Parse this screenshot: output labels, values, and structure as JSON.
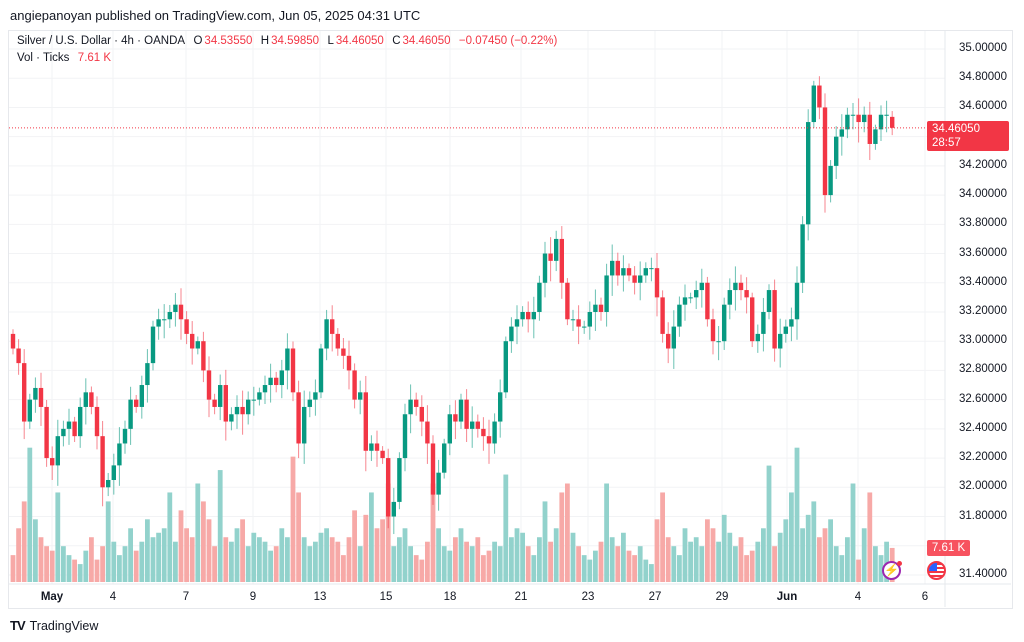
{
  "header": {
    "published": "angiepanoyan published on TradingView.com, Jun 05, 2025 04:31 UTC"
  },
  "legend": {
    "symbol": "Silver / U.S. Dollar · 4h · OANDA",
    "o_label": "O",
    "o": "34.53550",
    "h_label": "H",
    "h": "34.59850",
    "l_label": "L",
    "l": "34.46050",
    "c_label": "C",
    "c": "34.46050",
    "change": "−0.07450 (−0.22%)",
    "vol_label": "Vol · Ticks",
    "vol": "7.61 K"
  },
  "price_tag": {
    "price": "34.46050",
    "countdown": "28:57"
  },
  "vol_tag": "7.61 K",
  "footer": {
    "brand": "TradingView",
    "logo": "TV"
  },
  "colors": {
    "up": "#089981",
    "down": "#f23645",
    "up_vol": "#92d2cc",
    "down_vol": "#f7a9a7"
  },
  "chart_data": {
    "type": "candlestick",
    "title": "Silver / U.S. Dollar · 4h · OANDA",
    "y_ticks": [
      "35.00000",
      "34.80000",
      "34.60000",
      "34.20000",
      "34.00000",
      "33.80000",
      "33.60000",
      "33.40000",
      "33.20000",
      "33.00000",
      "32.80000",
      "32.60000",
      "32.40000",
      "32.20000",
      "32.00000",
      "31.80000",
      "31.40000"
    ],
    "x_ticks": [
      "May",
      "4",
      "7",
      "9",
      "13",
      "15",
      "18",
      "21",
      "23",
      "27",
      "29",
      "Jun",
      "4",
      "6"
    ],
    "ylim": [
      31.4,
      35.0
    ],
    "first_open": 33.05,
    "last_open": 34.5355,
    "last_close": 34.4605,
    "closes": [
      32.95,
      32.85,
      32.45,
      32.6,
      32.68,
      32.55,
      32.2,
      32.15,
      32.35,
      32.4,
      32.45,
      32.35,
      32.55,
      32.65,
      32.55,
      32.35,
      32.0,
      32.05,
      32.15,
      32.3,
      32.4,
      32.6,
      32.55,
      32.7,
      32.85,
      33.1,
      33.15,
      33.15,
      33.2,
      33.25,
      33.15,
      33.05,
      32.95,
      33.0,
      32.8,
      32.6,
      32.55,
      32.7,
      32.45,
      32.5,
      32.55,
      32.5,
      32.6,
      32.6,
      32.65,
      32.7,
      32.75,
      32.7,
      32.8,
      32.95,
      32.65,
      32.3,
      32.55,
      32.6,
      32.65,
      32.95,
      33.15,
      33.05,
      32.95,
      32.9,
      32.8,
      32.6,
      32.65,
      32.25,
      32.3,
      32.25,
      32.2,
      31.8,
      31.9,
      32.2,
      32.5,
      32.6,
      32.55,
      32.45,
      32.3,
      31.95,
      32.1,
      32.3,
      32.5,
      32.45,
      32.6,
      32.4,
      32.45,
      32.4,
      32.35,
      32.3,
      32.45,
      32.65,
      33.0,
      33.1,
      33.15,
      33.2,
      33.15,
      33.2,
      33.4,
      33.6,
      33.55,
      33.7,
      33.4,
      33.15,
      33.15,
      33.1,
      33.1,
      33.2,
      33.25,
      33.2,
      33.45,
      33.55,
      33.45,
      33.5,
      33.45,
      33.4,
      33.45,
      33.5,
      33.5,
      33.3,
      33.05,
      32.95,
      33.1,
      33.25,
      33.3,
      33.3,
      33.35,
      33.4,
      33.15,
      33.0,
      33.0,
      33.25,
      33.35,
      33.4,
      33.35,
      33.3,
      33.0,
      33.05,
      33.2,
      33.35,
      32.95,
      33.05,
      33.1,
      33.15,
      33.4,
      33.8,
      34.5,
      34.75,
      34.6,
      34.0,
      34.2,
      34.4,
      34.45,
      34.55,
      34.55,
      34.5,
      34.55,
      34.35,
      34.45,
      34.55,
      34.55,
      34.4605
    ],
    "volume_k": [
      6,
      12,
      18,
      30,
      14,
      10,
      8,
      7,
      20,
      8,
      6,
      5,
      4,
      7,
      10,
      5,
      8,
      18,
      9,
      6,
      8,
      12,
      7,
      9,
      14,
      10,
      11,
      12,
      20,
      9,
      16,
      12,
      10,
      22,
      18,
      14,
      8,
      25,
      10,
      9,
      12,
      14,
      8,
      11,
      10,
      9,
      7,
      8,
      12,
      10,
      28,
      20,
      10,
      8,
      9,
      11,
      12,
      10,
      9,
      6,
      10,
      16,
      8,
      15,
      20,
      12,
      14,
      22,
      8,
      10,
      12,
      8,
      6,
      5,
      9,
      22,
      12,
      8,
      7,
      10,
      12,
      9,
      8,
      10,
      6,
      7,
      9,
      8,
      24,
      10,
      12,
      11,
      8,
      6,
      10,
      18,
      9,
      12,
      20,
      22,
      11,
      8,
      6,
      5,
      7,
      9,
      22,
      10,
      8,
      11,
      7,
      6,
      8,
      5,
      4,
      14,
      20,
      10,
      8,
      6,
      12,
      9,
      10,
      8,
      14,
      12,
      9,
      15,
      11,
      8,
      10,
      6,
      7,
      9,
      12,
      26,
      8,
      11,
      14,
      20,
      30,
      12,
      15,
      18,
      10,
      12,
      14,
      8,
      6,
      10,
      22,
      5,
      12,
      20,
      8,
      6,
      9,
      7.61
    ]
  }
}
